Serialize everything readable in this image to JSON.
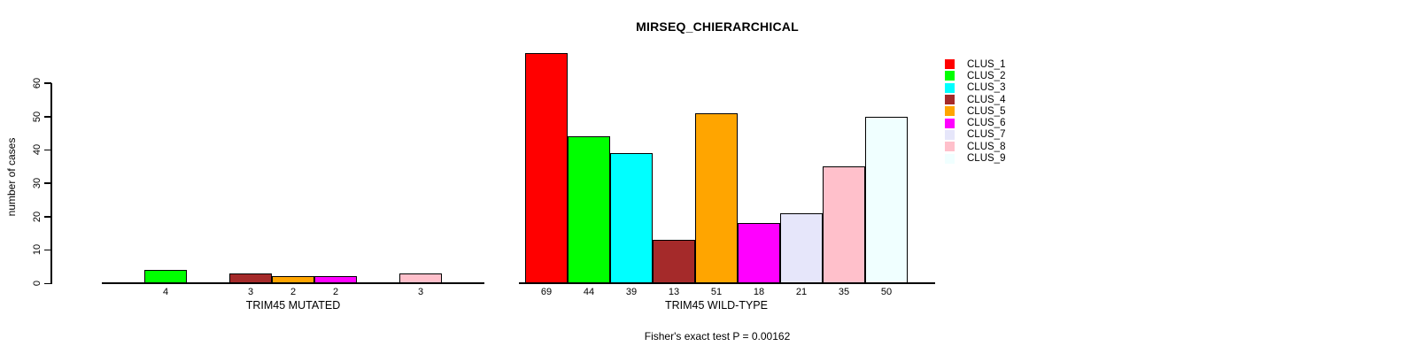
{
  "title": "MIRSEQ_CHIERARCHICAL",
  "chart_data": {
    "type": "bar",
    "title": "MIRSEQ_CHIERARCHICAL",
    "ylabel": "number of cases",
    "xlabel": "",
    "yticks": [
      0,
      10,
      20,
      30,
      40,
      50,
      60
    ],
    "ylim": [
      0,
      70
    ],
    "grid": false,
    "bar_spacing": 0,
    "categories": [
      "CLUS_1",
      "CLUS_2",
      "CLUS_3",
      "CLUS_4",
      "CLUS_5",
      "CLUS_6",
      "CLUS_7",
      "CLUS_8",
      "CLUS_9"
    ],
    "colors": [
      "#FF0000",
      "#00FF00",
      "#00FFFF",
      "#A52A2A",
      "#FFA500",
      "#FF00FF",
      "#E6E6FA",
      "#FFC0CB",
      "#F0FFFF"
    ],
    "groups": [
      {
        "label": "TRIM45 MUTATED",
        "values": [
          0,
          4,
          0,
          3,
          2,
          2,
          0,
          3,
          0
        ]
      },
      {
        "label": "TRIM45 WILD-TYPE",
        "values": [
          69,
          44,
          39,
          13,
          51,
          18,
          21,
          35,
          50
        ]
      }
    ],
    "value_labels_shown_for_nonzero_only": true,
    "legend": {
      "position": "right",
      "entries": [
        "CLUS_1",
        "CLUS_2",
        "CLUS_3",
        "CLUS_4",
        "CLUS_5",
        "CLUS_6",
        "CLUS_7",
        "CLUS_8",
        "CLUS_9"
      ]
    },
    "annotation": "Fisher's exact test P = 0.00162",
    "axis_color": "#000000",
    "background_color": "#FFFFFF"
  }
}
